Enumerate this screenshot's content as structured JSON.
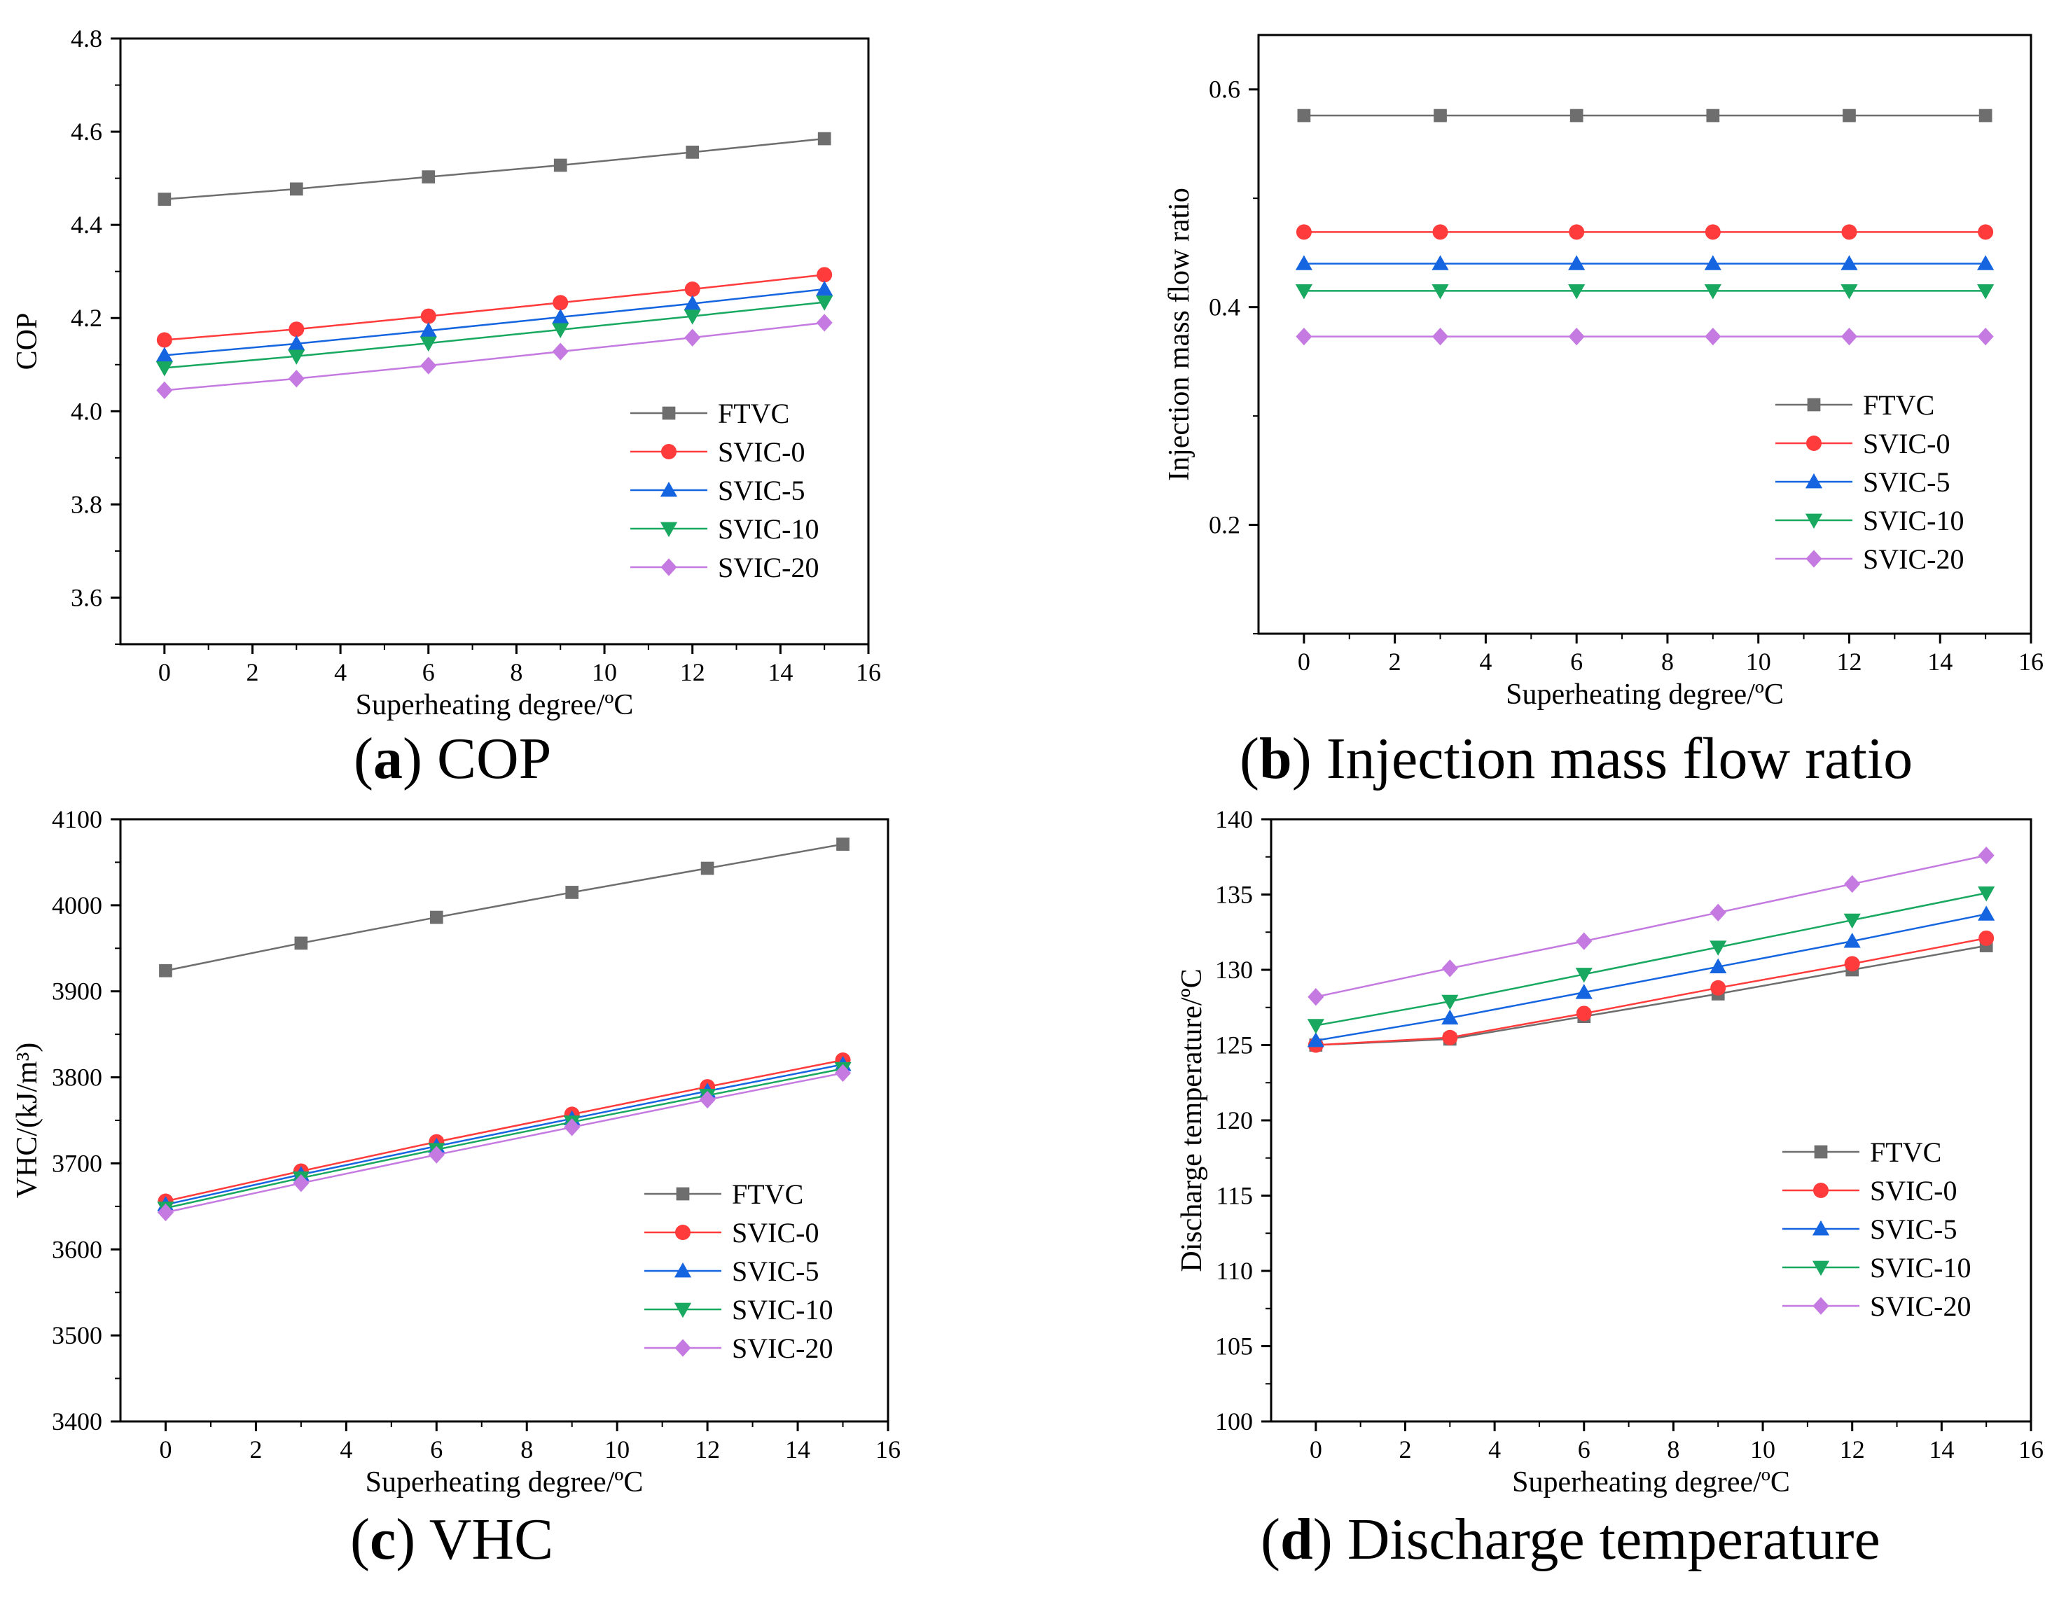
{
  "series_styles": [
    {
      "name": "FTVC",
      "color": "#6e6e6e",
      "marker": "square"
    },
    {
      "name": "SVIC-0",
      "color": "#ff3b3b",
      "marker": "circle"
    },
    {
      "name": "SVIC-5",
      "color": "#1565e0",
      "marker": "triangle-up"
    },
    {
      "name": "SVIC-10",
      "color": "#18a860",
      "marker": "triangle-down"
    },
    {
      "name": "SVIC-20",
      "color": "#c47ae0",
      "marker": "diamond"
    }
  ],
  "chart_data": [
    {
      "id": "a",
      "type": "line",
      "caption": {
        "letter": "a",
        "title": "COP"
      },
      "xlabel": "Superheating degree/ºC",
      "ylabel": "COP",
      "xlim": [
        -1,
        16
      ],
      "ylim": [
        3.5,
        4.8
      ],
      "xticks": [
        0,
        2,
        4,
        6,
        8,
        10,
        12,
        14,
        16
      ],
      "yticks": [
        3.6,
        3.8,
        4.0,
        4.2,
        4.4,
        4.6,
        4.8
      ],
      "yticklabels": [
        "3.6",
        "3.8",
        "4.0",
        "4.2",
        "4.4",
        "4.6",
        "4.8"
      ],
      "legend": "bottom-right",
      "x": [
        0,
        3,
        6,
        9,
        12,
        15
      ],
      "series": [
        {
          "name": "FTVC",
          "values": [
            4.455,
            4.477,
            4.503,
            4.528,
            4.556,
            4.585
          ]
        },
        {
          "name": "SVIC-0",
          "values": [
            4.153,
            4.176,
            4.204,
            4.233,
            4.262,
            4.293
          ]
        },
        {
          "name": "SVIC-5",
          "values": [
            4.12,
            4.145,
            4.173,
            4.202,
            4.231,
            4.262
          ]
        },
        {
          "name": "SVIC-10",
          "values": [
            4.093,
            4.118,
            4.146,
            4.175,
            4.204,
            4.234
          ]
        },
        {
          "name": "SVIC-20",
          "values": [
            4.045,
            4.07,
            4.098,
            4.128,
            4.158,
            4.19
          ]
        }
      ]
    },
    {
      "id": "b",
      "type": "line",
      "caption": {
        "letter": "b",
        "title": "Injection mass flow ratio"
      },
      "xlabel": "Superheating degree/ºC",
      "ylabel": "Injection mass flow ratio",
      "xlim": [
        -1,
        16
      ],
      "ylim": [
        0.1,
        0.65
      ],
      "xticks": [
        0,
        2,
        4,
        6,
        8,
        10,
        12,
        14,
        16
      ],
      "yticks": [
        0.2,
        0.4,
        0.6
      ],
      "yticklabels": [
        "0.2",
        "0.4",
        "0.6"
      ],
      "legend": "center-right",
      "x": [
        0,
        3,
        6,
        9,
        12,
        15
      ],
      "series": [
        {
          "name": "FTVC",
          "values": [
            0.576,
            0.576,
            0.576,
            0.576,
            0.576,
            0.576
          ]
        },
        {
          "name": "SVIC-0",
          "values": [
            0.469,
            0.469,
            0.469,
            0.469,
            0.469,
            0.469
          ]
        },
        {
          "name": "SVIC-5",
          "values": [
            0.44,
            0.44,
            0.44,
            0.44,
            0.44,
            0.44
          ]
        },
        {
          "name": "SVIC-10",
          "values": [
            0.415,
            0.415,
            0.415,
            0.415,
            0.415,
            0.415
          ]
        },
        {
          "name": "SVIC-20",
          "values": [
            0.373,
            0.373,
            0.373,
            0.373,
            0.373,
            0.373
          ]
        }
      ]
    },
    {
      "id": "c",
      "type": "line",
      "caption": {
        "letter": "c",
        "title": "VHC"
      },
      "xlabel": "Superheating degree/ºC",
      "ylabel": "VHC/(kJ/m³)",
      "xlim": [
        -1,
        16
      ],
      "ylim": [
        3400,
        4100
      ],
      "xticks": [
        0,
        2,
        4,
        6,
        8,
        10,
        12,
        14,
        16
      ],
      "yticks": [
        3400,
        3500,
        3600,
        3700,
        3800,
        3900,
        4000,
        4100
      ],
      "yticklabels": [
        "3400",
        "3500",
        "3600",
        "3700",
        "3800",
        "3900",
        "4000",
        "4100"
      ],
      "legend": "bottom-right",
      "x": [
        0,
        3,
        6,
        9,
        12,
        15
      ],
      "series": [
        {
          "name": "FTVC",
          "values": [
            3924,
            3956,
            3986,
            4015,
            4043,
            4071
          ]
        },
        {
          "name": "SVIC-0",
          "values": [
            3656,
            3691,
            3725,
            3757,
            3789,
            3820
          ]
        },
        {
          "name": "SVIC-5",
          "values": [
            3652,
            3687,
            3720,
            3752,
            3784,
            3815
          ]
        },
        {
          "name": "SVIC-10",
          "values": [
            3648,
            3683,
            3716,
            3748,
            3779,
            3810
          ]
        },
        {
          "name": "SVIC-20",
          "values": [
            3643,
            3677,
            3710,
            3742,
            3774,
            3805
          ]
        }
      ]
    },
    {
      "id": "d",
      "type": "line",
      "caption": {
        "letter": "d",
        "title": "Discharge temperature"
      },
      "xlabel": "Superheating degree/ºC",
      "ylabel": "Discharge temperature/ºC",
      "xlim": [
        -1,
        16
      ],
      "ylim": [
        100,
        140
      ],
      "xticks": [
        0,
        2,
        4,
        6,
        8,
        10,
        12,
        14,
        16
      ],
      "yticks": [
        100,
        105,
        110,
        115,
        120,
        125,
        130,
        135,
        140
      ],
      "yticklabels": [
        "100",
        "105",
        "110",
        "115",
        "120",
        "125",
        "130",
        "135",
        "140"
      ],
      "legend": "bottom-right",
      "x": [
        0,
        3,
        6,
        9,
        12,
        15
      ],
      "series": [
        {
          "name": "FTVC",
          "values": [
            125.0,
            125.4,
            126.9,
            128.4,
            130.0,
            131.6
          ]
        },
        {
          "name": "SVIC-0",
          "values": [
            125.0,
            125.5,
            127.1,
            128.8,
            130.4,
            132.1
          ]
        },
        {
          "name": "SVIC-5",
          "values": [
            125.3,
            126.8,
            128.5,
            130.2,
            131.9,
            133.7
          ]
        },
        {
          "name": "SVIC-10",
          "values": [
            126.3,
            127.9,
            129.7,
            131.5,
            133.3,
            135.1
          ]
        },
        {
          "name": "SVIC-20",
          "values": [
            128.2,
            130.1,
            131.9,
            133.8,
            135.7,
            137.6
          ]
        }
      ]
    }
  ]
}
